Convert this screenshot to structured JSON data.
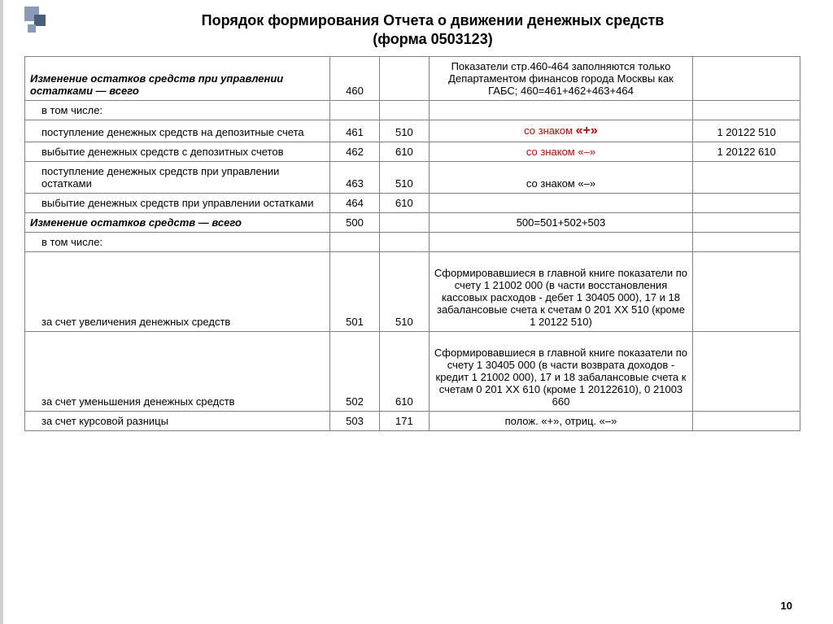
{
  "title_line1": "Порядок формирования Отчета о движении денежных средств",
  "title_line2": "(форма 0503123)",
  "rows": [
    {
      "desc": "Изменение остатков средств  при управлении остатками — всего",
      "desc_class": "bold-italic",
      "code": "460",
      "sub": "",
      "note": "Показатели стр.460-464 заполняются только Департаментом финансов города Москвы как ГАБС; 460=461+462+463+464",
      "note_class": "",
      "acc": ""
    },
    {
      "desc": "в том числе:",
      "desc_class": "indent",
      "code": "",
      "sub": "",
      "note": "",
      "acc": ""
    },
    {
      "desc": "поступление денежных средств на  депозитные счета",
      "desc_class": "indent",
      "code": "461",
      "sub": "510",
      "note": "со знаком <span class='plus'>«+»</span>",
      "note_class": "red",
      "acc": "1 20122 510"
    },
    {
      "desc": "выбытие денежных средств с депозитных счетов",
      "desc_class": "indent",
      "code": "462",
      "sub": "610",
      "note": "со знаком «–»",
      "note_class": "red",
      "acc": "1 20122 610",
      "acc_valign": "top"
    },
    {
      "desc": "поступление денежных средств при управлении остатками",
      "desc_class": "indent",
      "code": "463",
      "sub": "510",
      "note": "со знаком «–»",
      "note_class": "",
      "acc": ""
    },
    {
      "desc": "выбытие денежных средств при управлении остатками",
      "desc_class": "indent",
      "code": "464",
      "sub": "610",
      "note": "",
      "acc": ""
    },
    {
      "desc": "Изменение остатков средств — всего",
      "desc_class": "bold-italic",
      "code": "500",
      "sub": "",
      "note": "500=501+502+503",
      "acc": ""
    },
    {
      "desc": "в том числе:",
      "desc_class": "indent",
      "code": "",
      "sub": "",
      "note": "",
      "acc": ""
    },
    {
      "desc": "за счет увеличения денежных средств",
      "desc_class": "indent",
      "code": "501",
      "sub": "510",
      "note": "Сформировавшиеся в главной книге показатели по счету 1 21002 000 (в части восстановления кассовых расходов - дебет 1 30405 000), 17 и 18 забалансовые счета  к счетам 0 201 ХХ 510 (кроме 1 20122 510)",
      "tall": true,
      "acc": ""
    },
    {
      "desc": "за счет уменьшения денежных средств",
      "desc_class": "indent",
      "code": "502",
      "sub": "610",
      "note": "Сформировавшиеся в главной книге показатели по счету 1 30405 000 (в части возврата доходов - кредит 1 21002 000), 17 и 18 забалансовые счета  к счетам 0 201 ХХ 610 (кроме 1 20122610), 0 21003 660",
      "tall": true,
      "acc": ""
    },
    {
      "desc": "за счет курсовой разницы",
      "desc_class": "indent",
      "code": "503",
      "sub": "171",
      "note": "полож. «+», отриц. «–»",
      "acc": ""
    }
  ],
  "pagenum": "10"
}
